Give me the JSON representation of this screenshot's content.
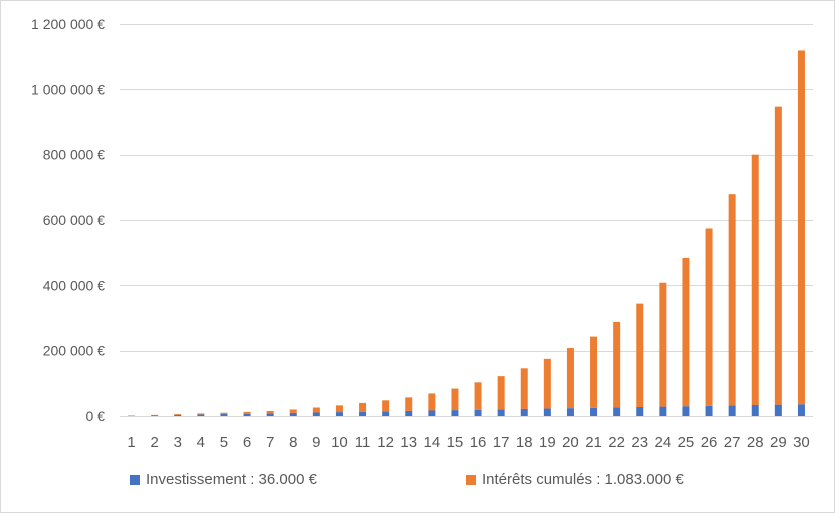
{
  "chart_data": {
    "type": "bar",
    "stacked": true,
    "categories": [
      "1",
      "2",
      "3",
      "4",
      "5",
      "6",
      "7",
      "8",
      "9",
      "10",
      "11",
      "12",
      "13",
      "14",
      "15",
      "16",
      "17",
      "18",
      "19",
      "20",
      "21",
      "22",
      "23",
      "24",
      "25",
      "26",
      "27",
      "28",
      "29",
      "30"
    ],
    "series": [
      {
        "name": "Investissement : 36.000 €",
        "color": "#4472c4",
        "values": [
          1200,
          2400,
          3600,
          4800,
          6000,
          7200,
          8400,
          9600,
          10800,
          12000,
          13200,
          14400,
          15600,
          16800,
          18000,
          19200,
          20400,
          21600,
          22800,
          24000,
          25200,
          26400,
          27600,
          28800,
          30000,
          31200,
          32400,
          33600,
          34800,
          36000
        ]
      },
      {
        "name": "Intérêts cumulés : 1.083.000 €",
        "color": "#ed7d31",
        "values": [
          100,
          1100,
          2400,
          3000,
          4000,
          5300,
          7100,
          10400,
          15200,
          20500,
          26800,
          33600,
          41400,
          52200,
          66000,
          83800,
          101600,
          124400,
          152200,
          184000,
          217800,
          261600,
          316400,
          379200,
          454000,
          542800,
          646600,
          766400,
          912200,
          1083000
        ]
      }
    ],
    "ylim": [
      0,
      1200000
    ],
    "y_ticks": [
      0,
      200000,
      400000,
      600000,
      800000,
      1000000,
      1200000
    ],
    "y_tick_labels": [
      "0 €",
      "200 000 €",
      "400 000 €",
      "600 000 €",
      "800 000 €",
      "1 000 000 €",
      "1 200 000 €"
    ],
    "grid": true,
    "legend_position": "bottom",
    "title": "",
    "xlabel": "",
    "ylabel": ""
  }
}
